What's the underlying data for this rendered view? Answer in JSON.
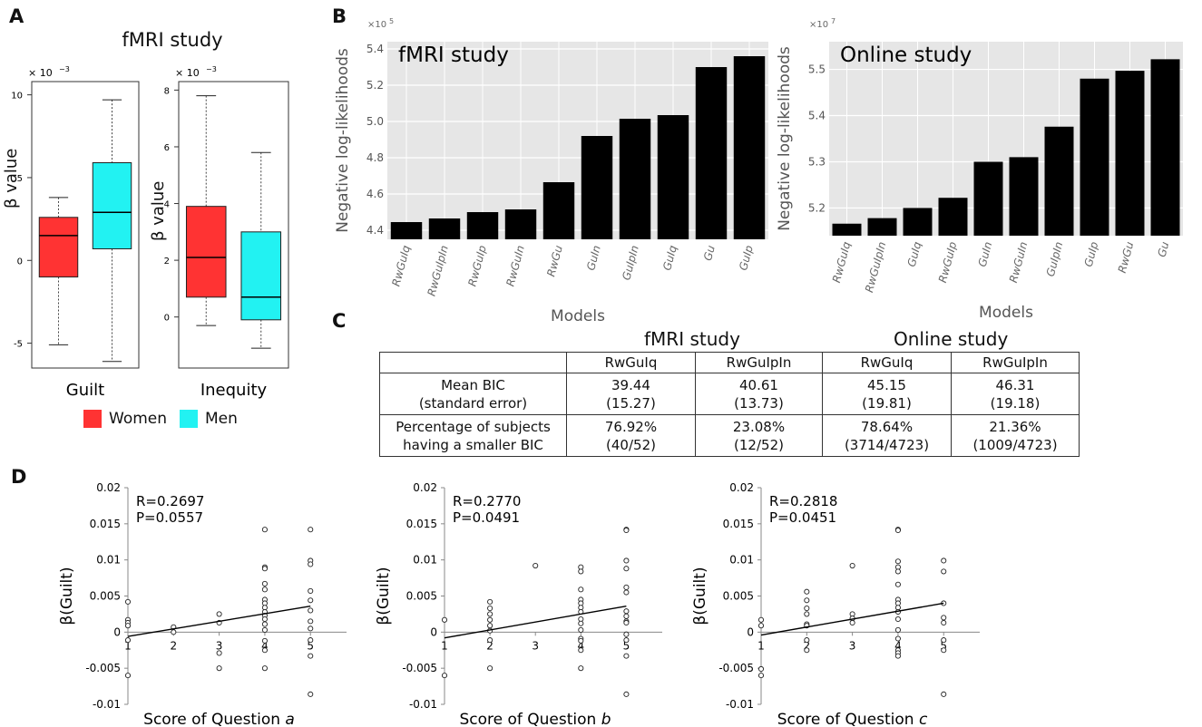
{
  "panels": {
    "A": "A",
    "B": "B",
    "C": "C",
    "D": "D"
  },
  "panelA": {
    "title": "fMRI study",
    "ylabel": "β value",
    "multiplier": "× 10",
    "exponent": "−3",
    "legend": [
      {
        "label": "Women",
        "color": "#ff3333"
      },
      {
        "label": "Men",
        "color": "#22f2f2"
      }
    ]
  },
  "panelB": {
    "xlabel": "Models",
    "ylabel": "Negative log-likelihoods"
  },
  "panelC": {
    "group_titles": [
      "fMRI study",
      "Online study"
    ],
    "columns": [
      "",
      "RwGuIq",
      "RwGuIpIn",
      "RwGuIq",
      "RwGuIpIn"
    ],
    "rows": [
      {
        "label": [
          "Mean BIC",
          "(standard error)"
        ],
        "cells": [
          [
            "39.44",
            "(15.27)"
          ],
          [
            "40.61",
            "(13.73)"
          ],
          [
            "45.15",
            "(19.81)"
          ],
          [
            "46.31",
            "(19.18)"
          ]
        ]
      },
      {
        "label": [
          "Percentage of subjects",
          "having a smaller BIC"
        ],
        "cells": [
          [
            "76.92%",
            "(40/52)"
          ],
          [
            "23.08%",
            "(12/52)"
          ],
          [
            "78.64%",
            "(3714/4723)"
          ],
          [
            "21.36%",
            "(1009/4723)"
          ]
        ]
      }
    ]
  },
  "panelD": {
    "ylabel": "β(Guilt)",
    "xlabel_prefix": "Score of Question "
  },
  "chart_data": [
    {
      "id": "A-guilt",
      "type": "box",
      "xlabel": "Guilt",
      "ylim": [
        -6.5,
        10.8
      ],
      "yticks": [
        -5,
        0,
        5,
        10
      ],
      "boxes": [
        {
          "group": "Women",
          "color": "#ff3333",
          "min": -5.1,
          "q1": -1.0,
          "median": 1.5,
          "q3": 2.6,
          "max": 3.8
        },
        {
          "group": "Men",
          "color": "#22f2f2",
          "min": -6.1,
          "q1": 0.7,
          "median": 2.9,
          "q3": 5.9,
          "max": 9.7
        }
      ]
    },
    {
      "id": "A-inequity",
      "type": "box",
      "xlabel": "Inequity",
      "ylim": [
        -1.8,
        8.3
      ],
      "yticks": [
        0,
        2,
        4,
        6,
        8
      ],
      "boxes": [
        {
          "group": "Women",
          "color": "#ff3333",
          "min": -0.3,
          "q1": 0.7,
          "median": 2.1,
          "q3": 3.9,
          "max": 7.8
        },
        {
          "group": "Men",
          "color": "#22f2f2",
          "min": -1.1,
          "q1": -0.1,
          "median": 0.7,
          "q3": 3.0,
          "max": 5.8
        }
      ]
    },
    {
      "id": "B-fmri",
      "type": "bar",
      "title": "fMRI study",
      "multiplier": "×10",
      "exponent": "5",
      "ylim": [
        4.35,
        5.44
      ],
      "yticks": [
        "4.4",
        "4.6",
        "4.8",
        "5.0",
        "5.2",
        "5.4"
      ],
      "categories": [
        "RwGuIq",
        "RwGuIpIn",
        "RwGuIp",
        "RwGuIn",
        "RwGu",
        "GuIn",
        "GuIpIn",
        "GuIq",
        "Gu",
        "GuIp"
      ],
      "values": [
        4.445,
        4.465,
        4.5,
        4.515,
        4.665,
        4.92,
        5.015,
        5.035,
        5.3,
        5.36
      ]
    },
    {
      "id": "B-online",
      "type": "bar",
      "title": "Online study",
      "multiplier": "×10",
      "exponent": "7",
      "ylim": [
        5.14,
        5.56
      ],
      "yticks": [
        "5.2",
        "5.3",
        "5.4",
        "5.5"
      ],
      "categories": [
        "RwGuIq",
        "RwGuIpIn",
        "GuIq",
        "RwGuIp",
        "GuIn",
        "RwGuIn",
        "GuIpIn",
        "GuIp",
        "RwGu",
        "Gu"
      ],
      "values": [
        5.166,
        5.178,
        5.2,
        5.222,
        5.3,
        5.31,
        5.376,
        5.48,
        5.497,
        5.522
      ]
    },
    {
      "id": "D-a",
      "type": "scatter",
      "question": "a",
      "R": "R=0.2697",
      "P": "P=0.0557",
      "xticks": [
        "1",
        "2",
        "3",
        "4",
        "5"
      ],
      "yticks": [
        "0.02",
        "0.015",
        "0.01",
        "0.005",
        "0",
        "-0.005",
        "-0.01"
      ],
      "xlim": [
        1,
        5
      ],
      "ylim": [
        -0.01,
        0.02
      ],
      "fit": [
        [
          1,
          -0.0006
        ],
        [
          5,
          0.0036
        ]
      ],
      "points": [
        [
          1,
          0.0042
        ],
        [
          1,
          0.0017
        ],
        [
          1,
          0.0013
        ],
        [
          1,
          0.0009
        ],
        [
          1,
          -0.0011
        ],
        [
          1,
          -0.006
        ],
        [
          2,
          0.0007
        ],
        [
          2,
          0
        ],
        [
          3,
          0.0025
        ],
        [
          3,
          0.0013
        ],
        [
          3,
          -0.0029
        ],
        [
          3,
          -0.005
        ],
        [
          4,
          0.0142
        ],
        [
          4,
          0.009
        ],
        [
          4,
          0.0088
        ],
        [
          4,
          0.0067
        ],
        [
          4,
          0.0059
        ],
        [
          4,
          0.0045
        ],
        [
          4,
          0.004
        ],
        [
          4,
          0.0034
        ],
        [
          4,
          0.0028
        ],
        [
          4,
          0.0023
        ],
        [
          4,
          0.0018
        ],
        [
          4,
          0.0011
        ],
        [
          4,
          0.0003
        ],
        [
          4,
          -0.0012
        ],
        [
          4,
          -0.0025
        ],
        [
          4,
          -0.005
        ],
        [
          5,
          0.0142
        ],
        [
          5,
          0.0099
        ],
        [
          5,
          0.0094
        ],
        [
          5,
          0.0057
        ],
        [
          5,
          0.0044
        ],
        [
          5,
          0.003
        ],
        [
          5,
          0.0015
        ],
        [
          5,
          0.0005
        ],
        [
          5,
          -0.0011
        ],
        [
          5,
          -0.0033
        ],
        [
          5,
          -0.0086
        ]
      ]
    },
    {
      "id": "D-b",
      "type": "scatter",
      "question": "b",
      "R": "R=0.2770",
      "P": "P=0.0491",
      "xticks": [
        "1",
        "2",
        "3",
        "4",
        "5"
      ],
      "yticks": [
        "0.02",
        "0.015",
        "0.01",
        "0.005",
        "0",
        "-0.005",
        "-0.01"
      ],
      "xlim": [
        1,
        5
      ],
      "ylim": [
        -0.01,
        0.02
      ],
      "fit": [
        [
          1,
          -0.0008
        ],
        [
          5,
          0.0036
        ]
      ],
      "points": [
        [
          1,
          0.0017
        ],
        [
          1,
          -0.006
        ],
        [
          2,
          0.0042
        ],
        [
          2,
          0.0033
        ],
        [
          2,
          0.0025
        ],
        [
          2,
          0.0017
        ],
        [
          2,
          0.0009
        ],
        [
          2,
          0.0002
        ],
        [
          2,
          -0.0011
        ],
        [
          2,
          -0.005
        ],
        [
          3,
          0.0092
        ],
        [
          4,
          0.009
        ],
        [
          4,
          0.0084
        ],
        [
          4,
          0.0059
        ],
        [
          4,
          0.0045
        ],
        [
          4,
          0.004
        ],
        [
          4,
          0.0034
        ],
        [
          4,
          0.0028
        ],
        [
          4,
          0.0018
        ],
        [
          4,
          0.0012
        ],
        [
          4,
          0.0003
        ],
        [
          4,
          -0.0009
        ],
        [
          4,
          -0.0012
        ],
        [
          4,
          -0.0025
        ],
        [
          4,
          -0.005
        ],
        [
          5,
          0.0142
        ],
        [
          5,
          0.0141
        ],
        [
          5,
          0.0099
        ],
        [
          5,
          0.0088
        ],
        [
          5,
          0.0062
        ],
        [
          5,
          0.0055
        ],
        [
          5,
          0.0029
        ],
        [
          5,
          0.0022
        ],
        [
          5,
          0.0015
        ],
        [
          5,
          0.0013
        ],
        [
          5,
          -0.0003
        ],
        [
          5,
          -0.0011
        ],
        [
          5,
          -0.0033
        ],
        [
          5,
          -0.0086
        ]
      ]
    },
    {
      "id": "D-c",
      "type": "scatter",
      "question": "c",
      "R": "R=0.2818",
      "P": "P=0.0451",
      "xticks": [
        "1",
        "2",
        "3",
        "4",
        "5"
      ],
      "yticks": [
        "0.02",
        "0.015",
        "0.01",
        "0.005",
        "0",
        "-0.005",
        "-0.01"
      ],
      "xlim": [
        1,
        5
      ],
      "ylim": [
        -0.01,
        0.02
      ],
      "fit": [
        [
          1,
          -0.0004
        ],
        [
          5,
          0.004
        ]
      ],
      "points": [
        [
          1,
          0.0017
        ],
        [
          1,
          0.0009
        ],
        [
          1,
          -0.0051
        ],
        [
          1,
          -0.006
        ],
        [
          2,
          0.0056
        ],
        [
          2,
          0.0044
        ],
        [
          2,
          0.0033
        ],
        [
          2,
          0.0025
        ],
        [
          2,
          0.0011
        ],
        [
          2,
          0.0009
        ],
        [
          2,
          -0.0011
        ],
        [
          2,
          -0.0025
        ],
        [
          3,
          0.0092
        ],
        [
          3,
          0.0025
        ],
        [
          3,
          0.0019
        ],
        [
          3,
          0.0013
        ],
        [
          4,
          0.0142
        ],
        [
          4,
          0.0141
        ],
        [
          4,
          0.0098
        ],
        [
          4,
          0.009
        ],
        [
          4,
          0.0084
        ],
        [
          4,
          0.0066
        ],
        [
          4,
          0.0045
        ],
        [
          4,
          0.004
        ],
        [
          4,
          0.0034
        ],
        [
          4,
          0.0028
        ],
        [
          4,
          0.0018
        ],
        [
          4,
          0.0003
        ],
        [
          4,
          -0.0009
        ],
        [
          4,
          -0.0025
        ],
        [
          4,
          -0.0029
        ],
        [
          4,
          -0.0033
        ],
        [
          5,
          0.0099
        ],
        [
          5,
          0.0084
        ],
        [
          5,
          0.004
        ],
        [
          5,
          0.002
        ],
        [
          5,
          0.0013
        ],
        [
          5,
          -0.0011
        ],
        [
          5,
          -0.0025
        ],
        [
          5,
          -0.0086
        ]
      ]
    }
  ]
}
